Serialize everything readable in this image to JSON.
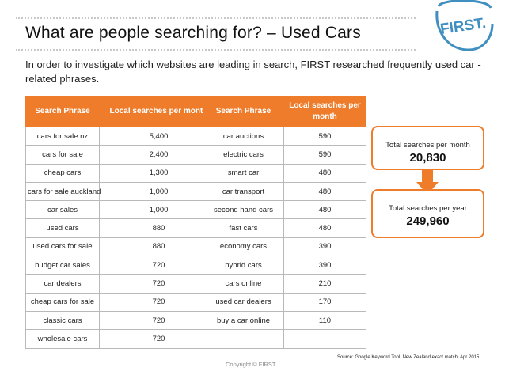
{
  "title": "What are people searching for? – Used Cars",
  "logo_text": "FIRST.",
  "intro": "In order to investigate which websites are leading in search, FIRST researched frequently used car - related phrases.",
  "colors": {
    "accent": "#ee7c2b",
    "logo": "#3f8fc0"
  },
  "table_headers": [
    "Search Phrase",
    "Local searches per month"
  ],
  "table_left": [
    [
      "cars for sale nz",
      "5,400"
    ],
    [
      "cars for sale",
      "2,400"
    ],
    [
      "cheap cars",
      "1,300"
    ],
    [
      "cars for sale auckland",
      "1,000"
    ],
    [
      "car sales",
      "1,000"
    ],
    [
      "used cars",
      "880"
    ],
    [
      "used cars for sale",
      "880"
    ],
    [
      "budget car sales",
      "720"
    ],
    [
      "car dealers",
      "720"
    ],
    [
      "cheap cars for sale",
      "720"
    ],
    [
      "classic cars",
      "720"
    ],
    [
      "wholesale cars",
      "720"
    ]
  ],
  "table_right": [
    [
      "car auctions",
      "590"
    ],
    [
      "electric cars",
      "590"
    ],
    [
      "smart car",
      "480"
    ],
    [
      "car transport",
      "480"
    ],
    [
      "second hand cars",
      "480"
    ],
    [
      "fast cars",
      "480"
    ],
    [
      "economy cars",
      "390"
    ],
    [
      "hybrid cars",
      "390"
    ],
    [
      "cars online",
      "210"
    ],
    [
      "used car dealers",
      "170"
    ],
    [
      "buy a car online",
      "110"
    ],
    [
      "",
      ""
    ]
  ],
  "totals": {
    "month_label": "Total searches per month",
    "month_value": "20,830",
    "year_label": "Total searches per year",
    "year_value": "249,960"
  },
  "source": "Source: Google Keyword Tool, New Zealand exact match, Apr 2015",
  "copyright": "Copyright © FIRST"
}
